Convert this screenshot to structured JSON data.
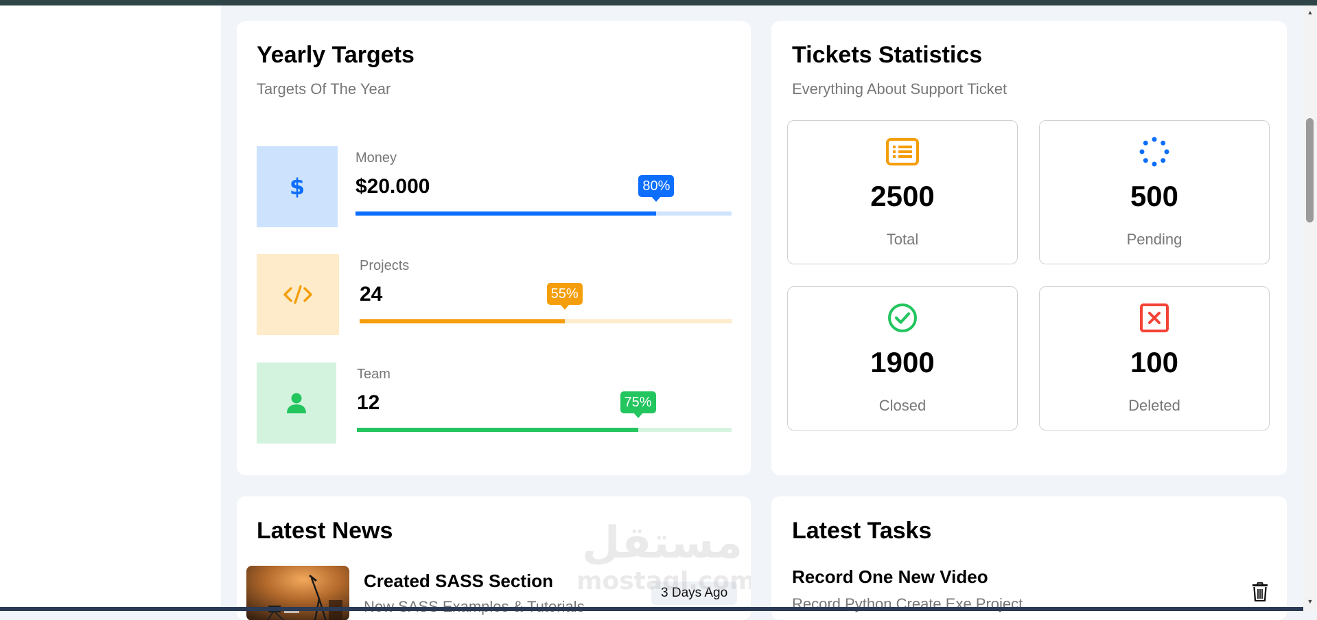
{
  "yearly_targets": {
    "title": "Yearly Targets",
    "subtitle": "Targets Of The Year",
    "items": [
      {
        "label": "Money",
        "value": "$20.000",
        "percent": 80,
        "percent_label": "80%",
        "icon": "dollar-icon",
        "color": "#0d6efd",
        "bg": "#cce2fd",
        "track": "#cfe4fc"
      },
      {
        "label": "Projects",
        "value": "24",
        "percent": 55,
        "percent_label": "55%",
        "icon": "code-icon",
        "color": "#f59e0b",
        "bg": "#fdebc9",
        "track": "#fdeccd"
      },
      {
        "label": "Team",
        "value": "12",
        "percent": 75,
        "percent_label": "75%",
        "icon": "user-icon",
        "color": "#22c55e",
        "bg": "#d3f3df",
        "track": "#d5f4e0"
      }
    ]
  },
  "tickets": {
    "title": "Tickets Statistics",
    "subtitle": "Everything About Support Ticket",
    "items": [
      {
        "value": "2500",
        "label": "Total",
        "icon": "list-icon",
        "color": "#f59e0b"
      },
      {
        "value": "500",
        "label": "Pending",
        "icon": "spinner-icon",
        "color": "#0d6efd"
      },
      {
        "value": "1900",
        "label": "Closed",
        "icon": "check-circle-icon",
        "color": "#22c55e"
      },
      {
        "value": "100",
        "label": "Deleted",
        "icon": "close-square-icon",
        "color": "#f44336"
      }
    ]
  },
  "news": {
    "title": "Latest News",
    "items": [
      {
        "title": "Created SASS Section",
        "description": "New SASS Examples & Tutorials",
        "date": "3 Days Ago"
      }
    ]
  },
  "tasks": {
    "title": "Latest Tasks",
    "items": [
      {
        "title": "Record One New Video",
        "description": "Record Python Create Exe Project",
        "action_icon": "trash-icon"
      }
    ]
  },
  "watermark": {
    "arabic": "مستقل",
    "latin": "mostaql.com"
  }
}
